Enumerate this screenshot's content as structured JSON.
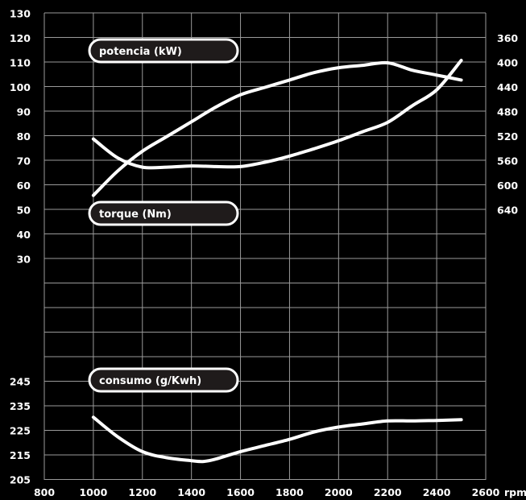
{
  "chart_data": {
    "type": "line",
    "x_unit": "rpm",
    "x_ticks": [
      "800",
      "1000",
      "1200",
      "1400",
      "1600",
      "1800",
      "2000",
      "2200",
      "2400",
      "2600"
    ],
    "left_ticks_upper": [
      "30",
      "40",
      "50",
      "60",
      "70",
      "80",
      "90",
      "100",
      "110",
      "120",
      "130"
    ],
    "left_ticks_lower": [
      "205",
      "215",
      "225",
      "235",
      "245"
    ],
    "right_ticks": [
      "360",
      "400",
      "440",
      "480",
      "520",
      "560",
      "600",
      "640"
    ],
    "grid": true,
    "series": [
      {
        "name": "potencia (kW)",
        "axis": "left-upper",
        "x": [
          1000,
          1100,
          1200,
          1300,
          1400,
          1500,
          1600,
          1700,
          1800,
          1900,
          2000,
          2100,
          2200,
          2300,
          2400,
          2500
        ],
        "y": [
          56,
          66,
          74,
          80,
          86,
          92,
          97,
          100,
          103,
          106,
          108,
          109,
          110,
          107,
          105,
          103
        ]
      },
      {
        "name": "torque (Nm)",
        "axis": "right",
        "x": [
          1000,
          1100,
          1200,
          1300,
          1400,
          1500,
          1600,
          1700,
          1800,
          1900,
          2000,
          2100,
          2200,
          2300,
          2400,
          2500
        ],
        "y": [
          524,
          555,
          570,
          570,
          568,
          569,
          569,
          562,
          552,
          540,
          527,
          512,
          497,
          470,
          444,
          396
        ]
      },
      {
        "name": "consumo (g/Kwh)",
        "axis": "left-lower",
        "x": [
          1000,
          1100,
          1200,
          1300,
          1400,
          1450,
          1500,
          1600,
          1700,
          1800,
          1900,
          2000,
          2100,
          2200,
          2300,
          2400,
          2500
        ],
        "y": [
          230.5,
          222.5,
          216.5,
          214,
          212.8,
          212.5,
          213.5,
          216.5,
          219,
          221.5,
          224.5,
          226.5,
          227.8,
          229,
          229,
          229.2,
          229.5
        ]
      }
    ]
  }
}
